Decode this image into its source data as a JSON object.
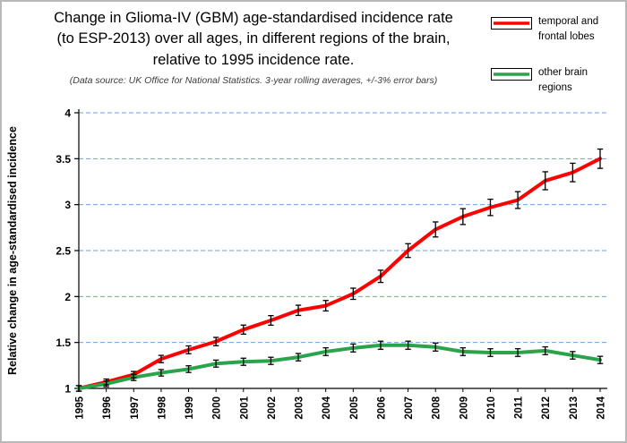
{
  "header": {
    "title_lines": [
      "Change in Glioma-IV (GBM) age-standardised incidence rate",
      "(to ESP-2013) over all ages, in different regions of the brain,",
      "relative to 1995 incidence rate."
    ],
    "subtitle": "(Data source: UK Office for National Statistics.  3-year rolling averages, +/-3% error bars)"
  },
  "legend": {
    "position": "top-right",
    "items": [
      {
        "label_lines": [
          "temporal and",
          "frontal lobes"
        ],
        "color": "#ff0000"
      },
      {
        "label_lines": [
          "other brain",
          "regions"
        ],
        "color": "#2aa44a"
      }
    ]
  },
  "chart_data": {
    "type": "line",
    "title": "Change in Glioma-IV (GBM) age-standardised incidence rate (to ESP-2013) over all ages, in different regions of the brain, relative to 1995 incidence rate.",
    "x": [
      1995,
      1996,
      1997,
      1998,
      1999,
      2000,
      2001,
      2002,
      2003,
      2004,
      2005,
      2006,
      2007,
      2008,
      2009,
      2010,
      2011,
      2012,
      2013,
      2014
    ],
    "series": [
      {
        "name": "temporal and frontal lobes",
        "color": "#ff0000",
        "values": [
          1.0,
          1.07,
          1.15,
          1.32,
          1.42,
          1.51,
          1.64,
          1.74,
          1.85,
          1.9,
          2.03,
          2.22,
          2.5,
          2.73,
          2.87,
          2.97,
          3.05,
          3.26,
          3.35,
          3.5
        ]
      },
      {
        "name": "other brain regions",
        "color": "#2aa44a",
        "values": [
          1.0,
          1.05,
          1.12,
          1.17,
          1.21,
          1.27,
          1.29,
          1.3,
          1.34,
          1.4,
          1.44,
          1.47,
          1.47,
          1.45,
          1.4,
          1.39,
          1.39,
          1.41,
          1.36,
          1.31
        ]
      }
    ],
    "xlabel": "",
    "ylabel": "Relative change in age-standardised incidence",
    "ylim": [
      1,
      4
    ],
    "yticks": [
      1,
      1.5,
      2,
      2.5,
      3,
      3.5,
      4
    ],
    "error_bars_pct": 3,
    "grid": "horizontal-dashed",
    "gridline_color": "#6f9fd8",
    "legend_position": "top-right"
  }
}
